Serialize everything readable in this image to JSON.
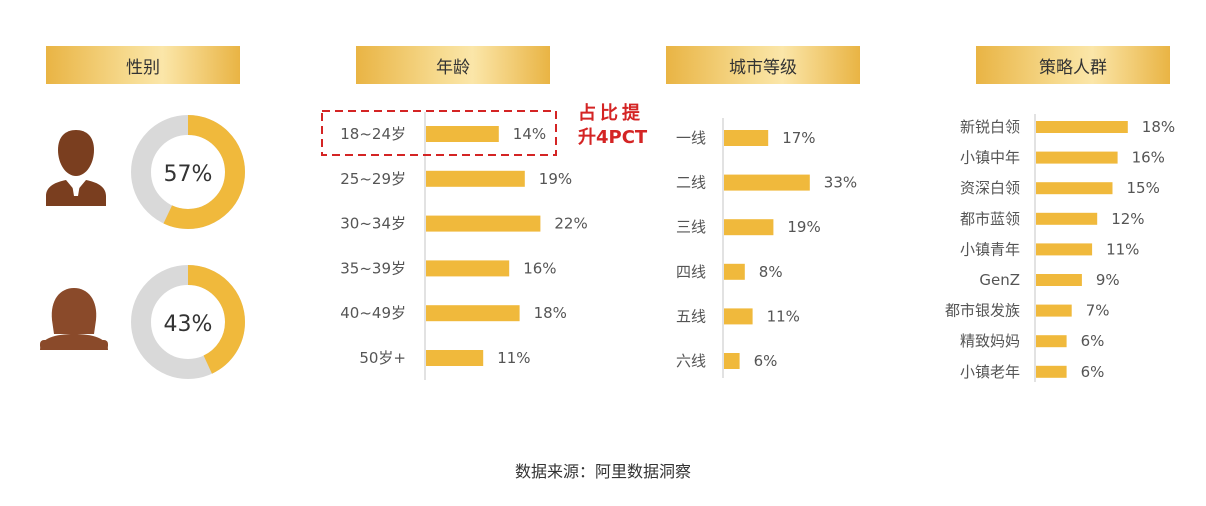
{
  "headers": {
    "gender": "性别",
    "age": "年龄",
    "city": "城市等级",
    "strategy": "策略人群"
  },
  "gender": {
    "male": {
      "label": "57%",
      "value": 57
    },
    "female": {
      "label": "43%",
      "value": 43
    }
  },
  "annotation": {
    "line1": "占比提",
    "line2": "升4PCT"
  },
  "source": "数据来源：阿里数据洞察",
  "colors": {
    "bar": "#f0b93c",
    "donut_track": "#d9d9d9",
    "icon": "#7a3e1f",
    "annotation": "#d42424"
  },
  "chart_data": [
    {
      "type": "pie",
      "title": "性别",
      "categories": [
        "男",
        "女"
      ],
      "values": [
        57,
        43
      ]
    },
    {
      "type": "bar",
      "title": "年龄",
      "categories": [
        "18~24岁",
        "25~29岁",
        "30~34岁",
        "35~39岁",
        "40~49岁",
        "50岁+"
      ],
      "values": [
        14,
        19,
        22,
        16,
        18,
        11
      ],
      "labels": [
        "14%",
        "19%",
        "22%",
        "16%",
        "18%",
        "11%"
      ],
      "unit": "%"
    },
    {
      "type": "bar",
      "title": "城市等级",
      "categories": [
        "一线",
        "二线",
        "三线",
        "四线",
        "五线",
        "六线"
      ],
      "values": [
        17,
        33,
        19,
        8,
        11,
        6
      ],
      "labels": [
        "17%",
        "33%",
        "19%",
        "8%",
        "11%",
        "6%"
      ],
      "unit": "%"
    },
    {
      "type": "bar",
      "title": "策略人群",
      "categories": [
        "新锐白领",
        "小镇中年",
        "资深白领",
        "都市蓝领",
        "小镇青年",
        "GenZ",
        "都市银发族",
        "精致妈妈",
        "小镇老年"
      ],
      "values": [
        18,
        16,
        15,
        12,
        11,
        9,
        7,
        6,
        6
      ],
      "labels": [
        "18%",
        "16%",
        "15%",
        "12%",
        "11%",
        "9%",
        "7%",
        "6%",
        "6%"
      ],
      "unit": "%"
    }
  ]
}
